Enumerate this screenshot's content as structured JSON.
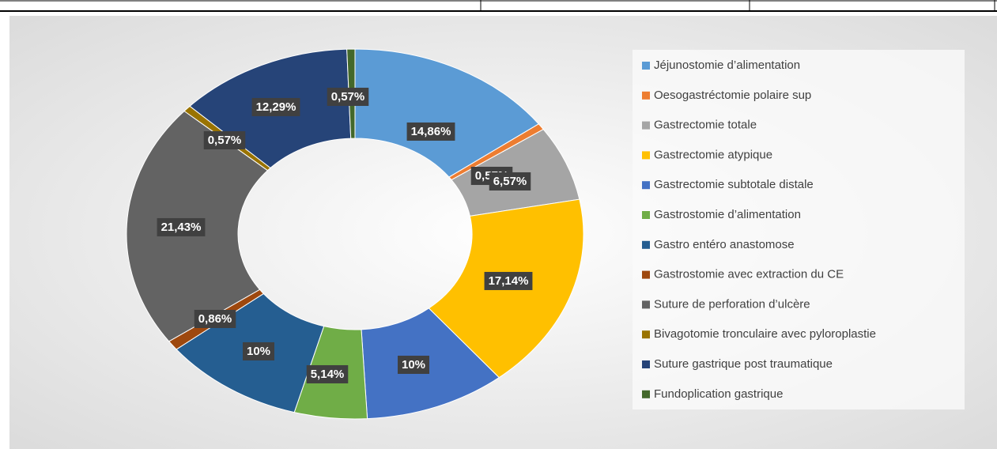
{
  "chart_data": {
    "type": "donut",
    "categories": [
      "Jéjunostomie d’alimentation",
      "Oesogastréctomie polaire sup",
      "Gastrectomie totale",
      "Gastrectomie atypique",
      "Gastrectomie subtotale distale",
      "Gastrostomie d’alimentation",
      "Gastro entéro anastomose",
      "Gastrostomie avec extraction du CE",
      "Suture de perforation d’ulcère",
      "Bivagotomie tronculaire avec pyloroplastie",
      "Suture gastrique post traumatique",
      "Fundoplication gastrique"
    ],
    "values": [
      14.86,
      0.57,
      6.57,
      17.14,
      10,
      5.14,
      10,
      0.86,
      21.43,
      0.57,
      12.29,
      0.57
    ],
    "value_labels": [
      "14,86%",
      "0,57%",
      "6,57%",
      "17,14%",
      "10%",
      "5,14%",
      "10%",
      "0,86%",
      "21,43%",
      "0,57%",
      "12,29%",
      "0,57%"
    ],
    "colors": [
      "#5b9bd5",
      "#ed7d31",
      "#a5a5a5",
      "#ffc000",
      "#4472c4",
      "#70ad47",
      "#255e91",
      "#9e480e",
      "#636363",
      "#997300",
      "#264478",
      "#43682b"
    ],
    "legend": "right"
  }
}
